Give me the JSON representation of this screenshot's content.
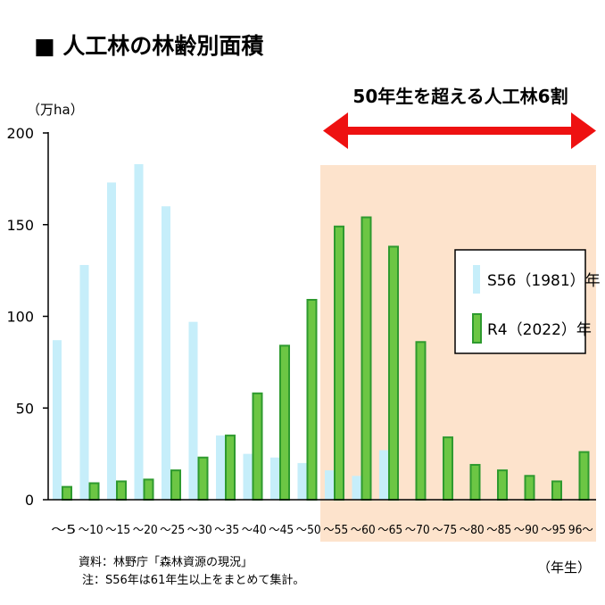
{
  "title": "■ 人工林の林齢別面積",
  "chart_data": {
    "type": "bar",
    "title": "人工林の林齢別面積",
    "ylabel": "（万ha）",
    "xlabel": "（年生）",
    "ylim": [
      0,
      200
    ],
    "yticks": [
      0,
      50,
      100,
      150,
      200
    ],
    "grid": false,
    "legend_position": "right",
    "categories": [
      "～5",
      "～10",
      "～15",
      "～20",
      "～25",
      "～30",
      "～35",
      "～40",
      "～45",
      "～50",
      "～55",
      "～60",
      "～65",
      "～70",
      "～75",
      "～80",
      "～85",
      "～90",
      "～95",
      "96～"
    ],
    "series": [
      {
        "name": "S56（1981）年",
        "color": "#c6eefa",
        "values": [
          87,
          128,
          173,
          183,
          160,
          97,
          35,
          25,
          23,
          20,
          16,
          13,
          27,
          0,
          0,
          0,
          0,
          0,
          0,
          0
        ]
      },
      {
        "name": "R4（2022）年",
        "color": "#6cc644",
        "stroke": "#2e9a2e",
        "values": [
          7,
          9,
          10,
          11,
          16,
          23,
          35,
          58,
          84,
          109,
          149,
          154,
          138,
          86,
          34,
          19,
          16,
          13,
          10,
          26
        ]
      }
    ],
    "annotation": "50年生を超える人工林6割",
    "highlight_color": "#fde3cc",
    "arrow_color": "#ee1111"
  },
  "source": "資料：林野庁「森林資源の現況」",
  "note": "注：S56年は61年生以上をまとめて集計。"
}
